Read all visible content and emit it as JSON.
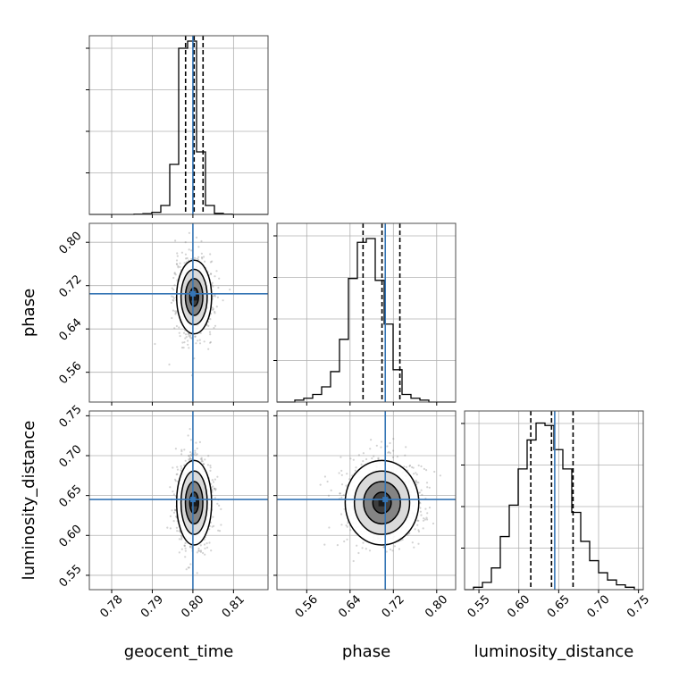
{
  "chart_data": {
    "type": "corner",
    "title": "",
    "parameters": [
      "geocent_time",
      "phase",
      "luminosity_distance"
    ],
    "colors": {
      "truth": "#3575b5",
      "hist": "#000000",
      "quantile": "#000000",
      "grid": "#b0b0b0",
      "scatter": "#808080",
      "density_dark": "#3a3a3a",
      "density_mid": "#7a7a7a",
      "density_light": "#d8d8d8"
    },
    "grid": true,
    "truths": {
      "geocent_time": 0.8,
      "phase": 0.705,
      "luminosity_distance": 0.645
    },
    "quantiles": {
      "geocent_time": [
        0.7982,
        0.8003,
        0.8025
      ],
      "phase": [
        0.664,
        0.699,
        0.732
      ],
      "luminosity_distance": [
        0.615,
        0.641,
        0.668
      ]
    },
    "axes": {
      "geocent_time": {
        "label": "geocent_time",
        "range": [
          0.7745,
          0.8185
        ],
        "ticks": [
          0.78,
          0.79,
          0.8,
          0.81
        ],
        "tick_labels": [
          "0.78",
          "0.79",
          "0.80",
          "0.81"
        ]
      },
      "phase": {
        "label": "phase",
        "range": [
          0.505,
          0.835
        ],
        "ticks": [
          0.56,
          0.64,
          0.72,
          0.8
        ],
        "tick_labels": [
          "0.56",
          "0.64",
          "0.72",
          "0.80"
        ]
      },
      "luminosity_distance": {
        "label": "luminosity_distance",
        "range": [
          0.532,
          0.756
        ],
        "ticks": [
          0.55,
          0.6,
          0.65,
          0.7,
          0.75
        ],
        "tick_labels": [
          "0.55",
          "0.60",
          "0.65",
          "0.70",
          "0.75"
        ]
      }
    },
    "histograms": {
      "geocent_time": {
        "edges": [
          0.7745,
          0.7767,
          0.7789,
          0.7811,
          0.7833,
          0.7855,
          0.7877,
          0.7899,
          0.7921,
          0.7943,
          0.7965,
          0.7987,
          0.8009,
          0.8031,
          0.8053,
          0.8075,
          0.8097,
          0.8119,
          0.8141,
          0.8163,
          0.8185
        ],
        "counts": [
          0,
          0,
          0,
          0,
          0,
          1,
          2,
          6,
          25,
          140,
          465,
          485,
          175,
          25,
          3,
          1,
          0,
          0,
          0,
          0
        ],
        "max": 500
      },
      "phase": {
        "edges": [
          0.505,
          0.5215,
          0.538,
          0.5545,
          0.571,
          0.5875,
          0.604,
          0.6205,
          0.637,
          0.6535,
          0.67,
          0.6865,
          0.703,
          0.7195,
          0.736,
          0.7525,
          0.769,
          0.7855,
          0.802,
          0.8185,
          0.835
        ],
        "counts": [
          0,
          0,
          5,
          10,
          20,
          40,
          80,
          165,
          325,
          420,
          430,
          320,
          205,
          85,
          20,
          10,
          5,
          0,
          0,
          0
        ],
        "max": 470
      },
      "luminosity_distance": {
        "edges": [
          0.532,
          0.5432,
          0.5544,
          0.5656,
          0.5768,
          0.588,
          0.5992,
          0.6104,
          0.6216,
          0.6328,
          0.644,
          0.6552,
          0.6664,
          0.6776,
          0.6888,
          0.7,
          0.7112,
          0.7224,
          0.7336,
          0.7448,
          0.756
        ],
        "counts": [
          0,
          5,
          15,
          45,
          110,
          175,
          250,
          310,
          345,
          340,
          290,
          250,
          160,
          100,
          60,
          35,
          20,
          10,
          5,
          0
        ],
        "max": 370
      }
    },
    "scatter_seed": 7,
    "scatter_count": 900
  }
}
